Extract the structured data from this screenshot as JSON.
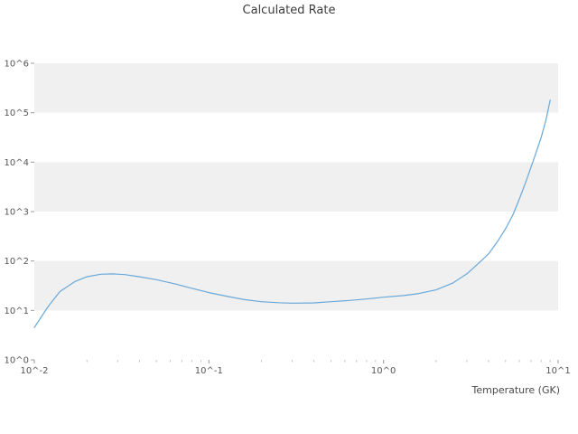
{
  "chart_data": {
    "type": "line",
    "title": "Calculated Rate",
    "xlabel": "Temperature (GK)",
    "ylabel": "",
    "xscale": "log",
    "yscale": "log",
    "xlim": [
      0.01,
      10
    ],
    "ylim": [
      1,
      1000000
    ],
    "xtick_values": [
      0.01,
      0.1,
      1,
      10
    ],
    "xtick_labels": [
      "10^-2",
      "10^-1",
      "10^0",
      "10^1"
    ],
    "ytick_values": [
      1,
      10,
      100,
      1000,
      10000,
      100000,
      1000000
    ],
    "ytick_labels": [
      "10^0",
      "10^1",
      "10^2",
      "10^3",
      "10^4",
      "10^5",
      "10^6"
    ],
    "grid": "horizontal-banded",
    "legend": "none",
    "line_color": "#69a8d8",
    "band_color": "#f0f0f0",
    "tick_color": "#c4c4c4",
    "series": [
      {
        "name": "calculated-rate",
        "x": [
          0.01,
          0.012,
          0.014,
          0.017,
          0.02,
          0.024,
          0.028,
          0.033,
          0.04,
          0.05,
          0.065,
          0.08,
          0.1,
          0.13,
          0.16,
          0.2,
          0.25,
          0.3,
          0.4,
          0.5,
          0.65,
          0.8,
          1.0,
          1.3,
          1.6,
          2.0,
          2.5,
          3.0,
          3.5,
          4.0,
          4.5,
          5.0,
          5.5,
          6.0,
          6.5,
          7.0,
          7.5,
          8.0,
          8.5,
          9.0
        ],
        "y": [
          4.5,
          12,
          24,
          38,
          48,
          54,
          55,
          53,
          48,
          42,
          34,
          28,
          23,
          19,
          16.5,
          15,
          14.3,
          14.0,
          14.2,
          15,
          16,
          17,
          18.5,
          20,
          22,
          26,
          36,
          55,
          90,
          140,
          250,
          450,
          850,
          1800,
          3800,
          8000,
          16000,
          32000,
          70000,
          180000
        ]
      }
    ]
  }
}
